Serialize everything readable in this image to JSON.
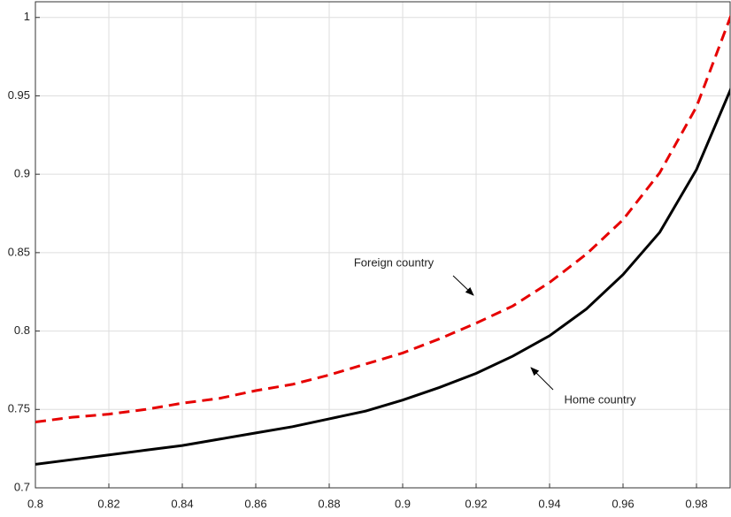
{
  "chart_data": {
    "type": "line",
    "x": [
      0.8,
      0.81,
      0.82,
      0.83,
      0.84,
      0.85,
      0.86,
      0.87,
      0.88,
      0.89,
      0.9,
      0.91,
      0.92,
      0.93,
      0.94,
      0.95,
      0.96,
      0.97,
      0.98,
      0.99
    ],
    "series": [
      {
        "name": "Foreign country",
        "color": "#e60000",
        "dashed": true,
        "values": [
          0.742,
          0.745,
          0.747,
          0.75,
          0.754,
          0.757,
          0.762,
          0.766,
          0.772,
          0.779,
          0.786,
          0.795,
          0.805,
          0.816,
          0.831,
          0.849,
          0.871,
          0.901,
          0.943,
          1.005
        ]
      },
      {
        "name": "Home country",
        "color": "#000000",
        "dashed": false,
        "values": [
          0.715,
          0.718,
          0.721,
          0.724,
          0.727,
          0.731,
          0.735,
          0.739,
          0.744,
          0.749,
          0.756,
          0.764,
          0.773,
          0.784,
          0.797,
          0.814,
          0.836,
          0.863,
          0.903,
          0.958
        ]
      }
    ],
    "xlim": [
      0.8,
      0.99
    ],
    "xticks": [
      0.8,
      0.82,
      0.84,
      0.86,
      0.88,
      0.9,
      0.92,
      0.94,
      0.96,
      0.98
    ],
    "ylim": [
      0.7,
      1.01
    ],
    "yticks": [
      0.7,
      0.75,
      0.8,
      0.85,
      0.9,
      0.95,
      1
    ],
    "grid": true
  }
}
